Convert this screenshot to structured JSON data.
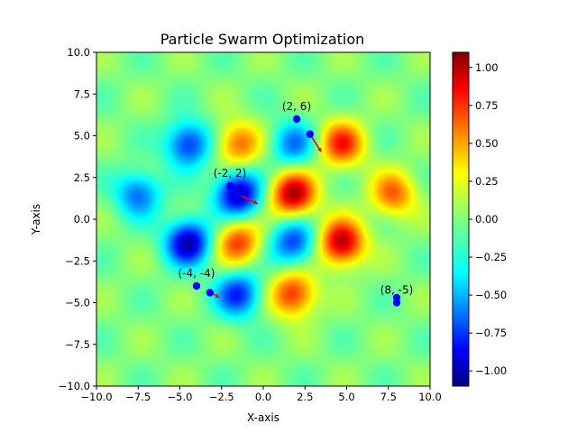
{
  "chart_data": {
    "type": "heatmap",
    "title": "Particle Swarm Optimization",
    "xlabel": "X-axis",
    "ylabel": "Y-axis",
    "xlim": [
      -10,
      10
    ],
    "ylim": [
      -10,
      10
    ],
    "x_ticks": [
      -10,
      -7.5,
      -5,
      -2.5,
      0,
      2.5,
      5,
      7.5,
      10
    ],
    "y_ticks": [
      -10,
      -7.5,
      -5,
      -2.5,
      0,
      2.5,
      5,
      7.5,
      10
    ],
    "x_tick_labels": [
      "−10.0",
      "−7.5",
      "−5.0",
      "−2.5",
      "0.0",
      "2.5",
      "5.0",
      "7.5",
      "10.0"
    ],
    "y_tick_labels": [
      "−10.0",
      "−7.5",
      "−5.0",
      "−2.5",
      "0.0",
      "2.5",
      "5.0",
      "7.5",
      "10.0"
    ],
    "colormap": "jet",
    "colorbar": {
      "range": [
        -1.1,
        1.1
      ],
      "ticks": [
        -1.0,
        -0.75,
        -0.5,
        -0.25,
        0.0,
        0.25,
        0.5,
        0.75,
        1.0
      ],
      "tick_labels": [
        "−1.00",
        "−0.75",
        "−0.50",
        "−0.25",
        "0.00",
        "0.25",
        "0.50",
        "0.75",
        "1.00"
      ]
    },
    "field_extrema": [
      {
        "x": -1.5,
        "y": 1.5,
        "value": -1.0
      },
      {
        "x": 1.8,
        "y": 1.5,
        "value": 1.0
      },
      {
        "x": -4.5,
        "y": -1.4,
        "value": -1.0
      },
      {
        "x": 4.7,
        "y": -1.4,
        "value": 1.0
      },
      {
        "x": -4.5,
        "y": 4.5,
        "value": -0.75
      },
      {
        "x": 4.7,
        "y": 4.5,
        "value": 0.75
      },
      {
        "x": -7.5,
        "y": 1.5,
        "value": -0.6
      },
      {
        "x": 7.8,
        "y": 1.5,
        "value": 0.6
      },
      {
        "x": -1.5,
        "y": -4.5,
        "value": -0.75
      },
      {
        "x": 1.8,
        "y": -4.5,
        "value": 0.75
      },
      {
        "x": -1.5,
        "y": 4.5,
        "value": 0.6
      },
      {
        "x": 1.8,
        "y": 4.5,
        "value": -0.55
      },
      {
        "x": -1.5,
        "y": -1.4,
        "value": 0.7
      },
      {
        "x": 1.8,
        "y": -1.4,
        "value": -0.7
      }
    ],
    "particles": [
      {
        "x": 2.8,
        "y": 5.1,
        "vx": 0.7,
        "vy": -1.1
      },
      {
        "x": -1.5,
        "y": 1.5,
        "vx": 1.2,
        "vy": -0.6
      },
      {
        "x": -3.2,
        "y": -4.4,
        "vx": 0.6,
        "vy": -0.3
      },
      {
        "x": 8.0,
        "y": -4.7,
        "vx": 0.0,
        "vy": -0.4
      }
    ],
    "markers": [
      {
        "label": "(2, 6)",
        "x": 2,
        "y": 6
      },
      {
        "label": "(-2, 2)",
        "x": -2,
        "y": 2
      },
      {
        "label": "(-4, -4)",
        "x": -4,
        "y": -4
      },
      {
        "label": "(8, -5)",
        "x": 8,
        "y": -5
      }
    ]
  }
}
